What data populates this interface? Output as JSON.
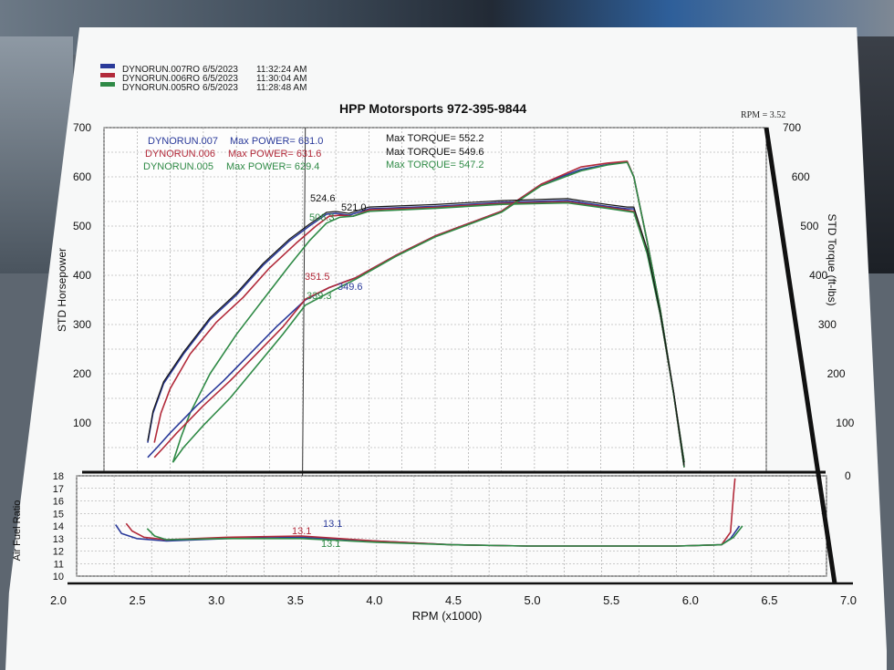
{
  "header": {
    "legend": [
      {
        "run": "DYNORUN.007RO",
        "date": "6/5/2023",
        "time": "11:32:24 AM",
        "color": "#2a3a9a"
      },
      {
        "run": "DYNORUN.006RO",
        "date": "6/5/2023",
        "time": "11:30:04 AM",
        "color": "#b22a3a"
      },
      {
        "run": "DYNORUN.005RO",
        "date": "6/5/2023",
        "time": "11:28:48 AM",
        "color": "#2f8a46"
      }
    ],
    "title": "HPP Motorsports  972-395-9844",
    "rpm_cursor": "RPM = 3.52"
  },
  "stats": [
    {
      "run": "DYNORUN.007",
      "power_label": "Max POWER= 631.0",
      "torque_label": "Max TORQUE= 552.2",
      "color": "#2a3a9a"
    },
    {
      "run": "DYNORUN.006",
      "power_label": "Max POWER= 631.6",
      "torque_label": "Max TORQUE= 549.6",
      "color": "#b22a3a"
    },
    {
      "run": "DYNORUN.005",
      "power_label": "Max POWER= 629.4",
      "torque_label": "Max TORQUE= 547.2",
      "color": "#2f8a46"
    }
  ],
  "cursor_values": [
    {
      "text": "524.6",
      "color": "#111111"
    },
    {
      "text": "521.0",
      "color": "#111111"
    },
    {
      "text": "506.3",
      "color": "#2f8a46"
    },
    {
      "text": "351.5",
      "color": "#b22a3a"
    },
    {
      "text": "349.6",
      "color": "#2a3a9a"
    },
    {
      "text": "339.3",
      "color": "#2f8a46"
    },
    {
      "text": "13.1",
      "color": "#b22a3a"
    },
    {
      "text": "13.1",
      "color": "#2a3a9a"
    },
    {
      "text": "13.1",
      "color": "#2f8a46"
    }
  ],
  "chart_data": {
    "type": "line",
    "x_label": "RPM (x1000)",
    "x_ticks": [
      "2.0",
      "2.5",
      "3.0",
      "3.5",
      "4.0",
      "4.5",
      "5.0",
      "5.5",
      "6.0",
      "6.5",
      "7.0"
    ],
    "xlim": [
      2.0,
      7.0
    ],
    "cursor_x": 3.52,
    "upper_panel": {
      "y_label": "STD Horsepower",
      "y2_label": "STD Torque (ft-lbs)",
      "ylim": [
        0,
        700
      ],
      "y_ticks": [
        "100",
        "200",
        "300",
        "400",
        "500",
        "600",
        "700"
      ],
      "y2_ticks": [
        "0",
        "100",
        "200",
        "300",
        "400",
        "500",
        "600",
        "700"
      ],
      "torque_series": [
        {
          "name": "DYNORUN.007",
          "color": "#2a3a9a",
          "x": [
            2.33,
            2.37,
            2.45,
            2.6,
            2.8,
            3.0,
            3.2,
            3.4,
            3.55,
            3.68,
            3.75,
            3.85,
            4.0,
            4.5,
            5.0,
            5.5,
            5.8,
            5.95,
            6.0,
            6.1,
            6.2,
            6.3,
            6.38
          ],
          "y": [
            60,
            120,
            180,
            240,
            310,
            360,
            420,
            470,
            500,
            524,
            526,
            522,
            535,
            540,
            548,
            552,
            540,
            535,
            535,
            450,
            320,
            160,
            10
          ]
        },
        {
          "name": "DYNORUN.006",
          "color": "#b22a3a",
          "x": [
            2.38,
            2.43,
            2.5,
            2.65,
            2.85,
            3.05,
            3.25,
            3.45,
            3.6,
            3.7,
            3.78,
            3.88,
            4.0,
            4.5,
            5.0,
            5.5,
            5.8,
            5.95,
            6.0,
            6.1,
            6.2,
            6.3,
            6.38
          ],
          "y": [
            60,
            120,
            170,
            240,
            305,
            355,
            415,
            465,
            500,
            520,
            522,
            520,
            533,
            538,
            546,
            549,
            538,
            532,
            530,
            450,
            320,
            160,
            10
          ]
        },
        {
          "name": "DYNORUN.005",
          "color": "#2f8a46",
          "x": [
            2.52,
            2.58,
            2.65,
            2.8,
            3.0,
            3.2,
            3.4,
            3.55,
            3.68,
            3.78,
            3.88,
            4.0,
            4.5,
            5.0,
            5.5,
            5.8,
            5.95,
            6.0,
            6.1,
            6.2,
            6.3,
            6.38
          ],
          "y": [
            20,
            70,
            120,
            200,
            280,
            350,
            420,
            470,
            506,
            518,
            520,
            530,
            536,
            544,
            547,
            536,
            530,
            528,
            445,
            320,
            160,
            10
          ]
        }
      ],
      "power_series": [
        {
          "name": "DYNORUN.007",
          "color": "#2a3a9a",
          "x": [
            2.33,
            2.4,
            2.5,
            2.7,
            2.9,
            3.1,
            3.3,
            3.52,
            3.7,
            3.9,
            4.2,
            4.5,
            4.8,
            5.0,
            5.3,
            5.6,
            5.8,
            5.95,
            6.0,
            6.1,
            6.2,
            6.3,
            6.38
          ],
          "y": [
            30,
            50,
            80,
            135,
            185,
            240,
            295,
            350,
            375,
            395,
            440,
            480,
            510,
            530,
            585,
            615,
            625,
            631,
            600,
            470,
            330,
            160,
            20
          ]
        },
        {
          "name": "DYNORUN.006",
          "color": "#b22a3a",
          "x": [
            2.38,
            2.45,
            2.55,
            2.75,
            2.95,
            3.15,
            3.35,
            3.52,
            3.7,
            3.9,
            4.2,
            4.5,
            4.8,
            5.0,
            5.3,
            5.6,
            5.8,
            5.95,
            6.0,
            6.1,
            6.2,
            6.3,
            6.38
          ],
          "y": [
            30,
            50,
            80,
            135,
            185,
            240,
            295,
            351.5,
            375,
            395,
            440,
            480,
            510,
            530,
            585,
            620,
            628,
            631.6,
            600,
            470,
            330,
            160,
            20
          ]
        },
        {
          "name": "DYNORUN.005",
          "color": "#2f8a46",
          "x": [
            2.52,
            2.6,
            2.75,
            2.95,
            3.15,
            3.35,
            3.52,
            3.7,
            3.9,
            4.2,
            4.5,
            4.8,
            5.0,
            5.3,
            5.6,
            5.8,
            5.95,
            6.0,
            6.1,
            6.2,
            6.3,
            6.38
          ],
          "y": [
            20,
            50,
            95,
            150,
            215,
            280,
            339.3,
            365,
            392,
            438,
            478,
            508,
            528,
            582,
            612,
            624,
            629.4,
            600,
            470,
            330,
            160,
            20
          ]
        }
      ]
    },
    "lower_panel": {
      "y_label": "Air Fuel Ratio",
      "ylim": [
        10,
        18
      ],
      "y_ticks": [
        "10",
        "11",
        "12",
        "13",
        "14",
        "15",
        "16",
        "17",
        "18"
      ],
      "series": [
        {
          "name": "DYNORUN.007",
          "color": "#2a3a9a",
          "x": [
            2.26,
            2.3,
            2.4,
            2.6,
            3.0,
            3.5,
            4.0,
            4.5,
            5.0,
            5.5,
            6.0,
            6.3,
            6.36,
            6.42
          ],
          "y": [
            14.1,
            13.4,
            13.0,
            12.8,
            13.0,
            13.1,
            12.8,
            12.5,
            12.4,
            12.4,
            12.4,
            12.5,
            13.0,
            14.0
          ]
        },
        {
          "name": "DYNORUN.006",
          "color": "#b22a3a",
          "x": [
            2.33,
            2.37,
            2.45,
            2.6,
            3.0,
            3.5,
            4.0,
            4.5,
            5.0,
            5.5,
            6.0,
            6.3,
            6.36,
            6.38,
            6.39
          ],
          "y": [
            14.2,
            13.6,
            13.1,
            12.9,
            13.1,
            13.2,
            12.8,
            12.5,
            12.4,
            12.4,
            12.4,
            12.5,
            13.5,
            16.5,
            17.8
          ]
        },
        {
          "name": "DYNORUN.005",
          "color": "#2f8a46",
          "x": [
            2.47,
            2.52,
            2.6,
            3.0,
            3.5,
            4.0,
            4.5,
            5.0,
            5.5,
            6.0,
            6.3,
            6.38,
            6.44
          ],
          "y": [
            13.8,
            13.2,
            12.9,
            13.0,
            13.0,
            12.7,
            12.5,
            12.4,
            12.4,
            12.4,
            12.5,
            13.1,
            14.0
          ]
        }
      ]
    }
  }
}
